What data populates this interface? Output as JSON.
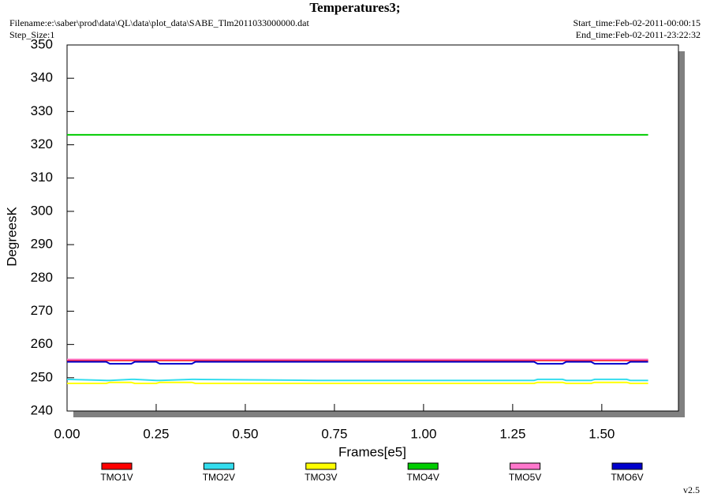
{
  "chart_data": {
    "type": "line",
    "title": "Temperatures3;",
    "annotations": {
      "filename": "Filename:e:\\saber\\prod\\data\\QL\\data\\plot_data\\SABE_Tlm2011033000000.dat",
      "step_size": "Step_Size:1",
      "start_time": "Start_time:Feb-02-2011-00:00:15",
      "end_time": "End_time:Feb-02-2011-23:22:32",
      "version": "v2.5"
    },
    "x_label": "Frames[e5]",
    "y_label": "DegreesK",
    "xlim": [
      0,
      1.715
    ],
    "ylim": [
      240,
      350
    ],
    "xticks": [
      {
        "value": 0,
        "label": "0.00"
      },
      {
        "value": 0.25,
        "label": "0.25"
      },
      {
        "value": 0.5,
        "label": "0.50"
      },
      {
        "value": 0.75,
        "label": "0.75"
      },
      {
        "value": 1,
        "label": "1.00"
      },
      {
        "value": 1.25,
        "label": "1.25"
      },
      {
        "value": 1.5,
        "label": "1.50"
      }
    ],
    "yticks": [
      240,
      250,
      260,
      270,
      280,
      290,
      300,
      310,
      320,
      330,
      340,
      350
    ],
    "grid": false,
    "legend": "bottom",
    "x": [
      0,
      0.11,
      0.12,
      0.18,
      0.19,
      0.25,
      0.26,
      0.35,
      0.36,
      0.7,
      1.31,
      1.32,
      1.39,
      1.4,
      1.47,
      1.48,
      1.57,
      1.58,
      1.63
    ],
    "series": [
      {
        "name": "TMO1V",
        "color": "#ff0000",
        "values": [
          255.2,
          255.2,
          255.2,
          255.2,
          255.2,
          255.2,
          255.2,
          255.2,
          255.2,
          255.2,
          255.2,
          255.2,
          255.2,
          255.2,
          255.2,
          255.2,
          255.2,
          255.2,
          255.2
        ]
      },
      {
        "name": "TMO2V",
        "color": "#33ddee",
        "values": [
          249.5,
          249.2,
          249.2,
          249.5,
          249.5,
          249.2,
          249.2,
          249.5,
          249.5,
          249.2,
          249.2,
          249.5,
          249.5,
          249.2,
          249.2,
          249.5,
          249.5,
          249.2,
          249.2
        ]
      },
      {
        "name": "TMO3V",
        "color": "#ffff00",
        "values": [
          248.3,
          248.3,
          248.6,
          248.6,
          248.3,
          248.3,
          248.6,
          248.6,
          248.3,
          248.3,
          248.3,
          248.6,
          248.6,
          248.3,
          248.3,
          248.6,
          248.6,
          248.3,
          248.3
        ]
      },
      {
        "name": "TMO4V",
        "color": "#00cc00",
        "values": [
          323,
          323,
          323,
          323,
          323,
          323,
          323,
          323,
          323,
          323,
          323,
          323,
          323,
          323,
          323,
          323,
          323,
          323,
          323
        ]
      },
      {
        "name": "TMO5V",
        "color": "#ff77cc",
        "values": [
          255.5,
          255.5,
          255.5,
          255.5,
          255.5,
          255.5,
          255.5,
          255.5,
          255.5,
          255.5,
          255.5,
          255.5,
          255.5,
          255.5,
          255.5,
          255.5,
          255.5,
          255.5,
          255.5
        ]
      },
      {
        "name": "TMO6V",
        "color": "#0000cc",
        "values": [
          254.8,
          254.8,
          254.2,
          254.2,
          254.8,
          254.8,
          254.2,
          254.2,
          254.8,
          254.8,
          254.8,
          254.2,
          254.2,
          254.8,
          254.8,
          254.2,
          254.2,
          254.8,
          254.8
        ]
      }
    ]
  }
}
